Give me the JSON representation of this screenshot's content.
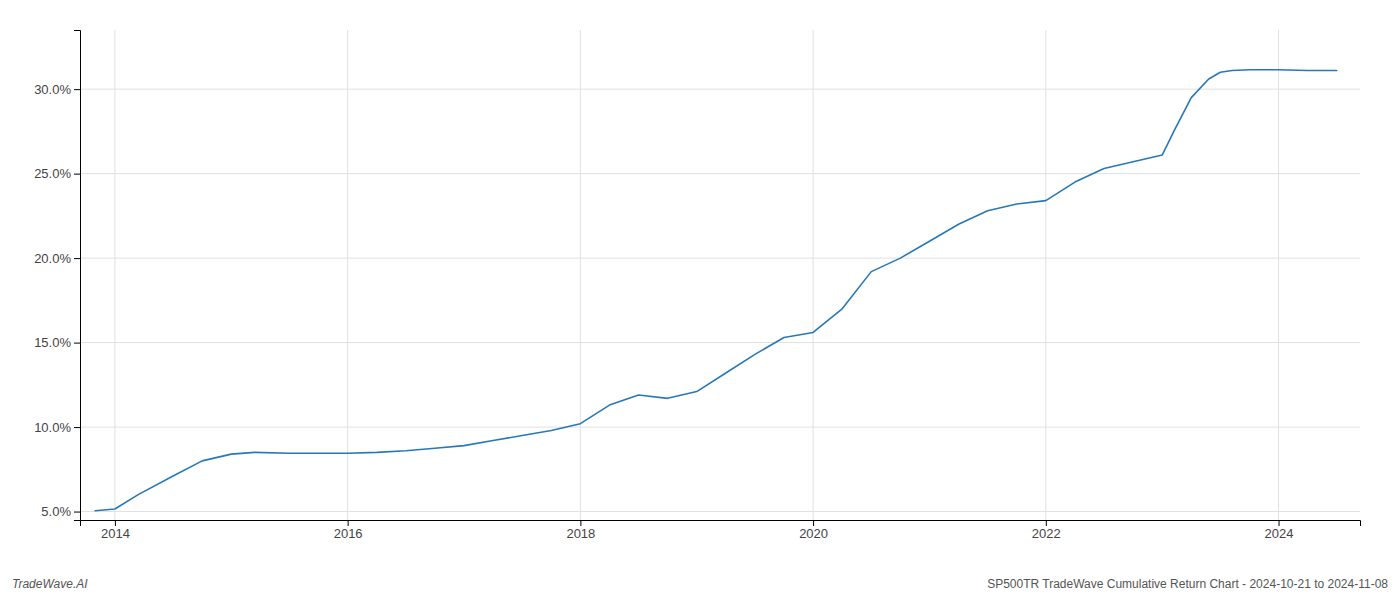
{
  "chart_data": {
    "type": "line",
    "x": [
      2013.83,
      2014.0,
      2014.2,
      2014.5,
      2014.75,
      2015.0,
      2015.2,
      2015.5,
      2015.75,
      2016.0,
      2016.25,
      2016.5,
      2016.75,
      2017.0,
      2017.25,
      2017.5,
      2017.75,
      2018.0,
      2018.25,
      2018.5,
      2018.75,
      2019.0,
      2019.25,
      2019.5,
      2019.75,
      2020.0,
      2020.25,
      2020.5,
      2020.75,
      2021.0,
      2021.25,
      2021.5,
      2021.75,
      2022.0,
      2022.25,
      2022.5,
      2022.75,
      2023.0,
      2023.1,
      2023.25,
      2023.4,
      2023.5,
      2023.6,
      2023.75,
      2024.0,
      2024.25,
      2024.5
    ],
    "values": [
      5.05,
      5.15,
      6.0,
      7.1,
      8.0,
      8.4,
      8.5,
      8.45,
      8.45,
      8.45,
      8.5,
      8.6,
      8.75,
      8.9,
      9.2,
      9.5,
      9.8,
      10.2,
      11.3,
      11.9,
      11.7,
      12.1,
      13.2,
      14.3,
      15.3,
      15.6,
      17.0,
      19.2,
      20.0,
      21.0,
      22.0,
      22.8,
      23.2,
      23.4,
      24.5,
      25.3,
      25.7,
      26.1,
      27.5,
      29.5,
      30.6,
      31.0,
      31.1,
      31.15,
      31.15,
      31.1,
      31.1
    ],
    "color": "#2878b8",
    "xlim": [
      2013.7,
      2024.7
    ],
    "ylim": [
      4.5,
      33.5
    ],
    "xticks": [
      2014,
      2016,
      2018,
      2020,
      2022,
      2024
    ],
    "yticks": [
      {
        "value": 5.0,
        "label": "5.0%"
      },
      {
        "value": 10.0,
        "label": "10.0%"
      },
      {
        "value": 15.0,
        "label": "15.0%"
      },
      {
        "value": 20.0,
        "label": "20.0%"
      },
      {
        "value": 25.0,
        "label": "25.0%"
      },
      {
        "value": 30.0,
        "label": "30.0%"
      }
    ],
    "grid": true,
    "annotations": [
      "TradeWave.AI",
      "SP500TR TradeWave Cumulative Return Chart - 2024-10-21 to 2024-11-08"
    ]
  }
}
